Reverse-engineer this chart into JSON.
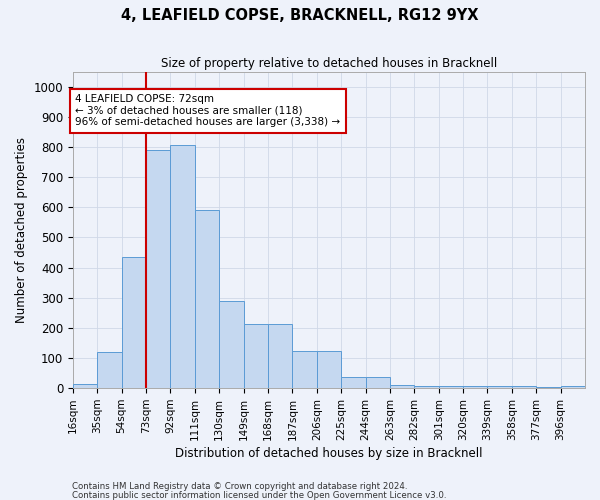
{
  "title": "4, LEAFIELD COPSE, BRACKNELL, RG12 9YX",
  "subtitle": "Size of property relative to detached houses in Bracknell",
  "xlabel": "Distribution of detached houses by size in Bracknell",
  "ylabel": "Number of detached properties",
  "footnote1": "Contains HM Land Registry data © Crown copyright and database right 2024.",
  "footnote2": "Contains public sector information licensed under the Open Government Licence v3.0.",
  "categories": [
    "16sqm",
    "35sqm",
    "54sqm",
    "73sqm",
    "92sqm",
    "111sqm",
    "130sqm",
    "149sqm",
    "168sqm",
    "187sqm",
    "206sqm",
    "225sqm",
    "244sqm",
    "263sqm",
    "282sqm",
    "301sqm",
    "320sqm",
    "339sqm",
    "358sqm",
    "377sqm",
    "396sqm"
  ],
  "values": [
    15,
    120,
    435,
    790,
    808,
    590,
    290,
    212,
    212,
    122,
    122,
    38,
    38,
    12,
    8,
    8,
    8,
    8,
    8,
    5,
    8
  ],
  "bar_color": "#c5d8f0",
  "bar_edge_color": "#5b9bd5",
  "annotation_line1": "4 LEAFIELD COPSE: 72sqm",
  "annotation_line2": "← 3% of detached houses are smaller (118)",
  "annotation_line3": "96% of semi-detached houses are larger (3,338) →",
  "annotation_box_color": "#ffffff",
  "annotation_box_edge_color": "#cc0000",
  "vline_color": "#cc0000",
  "vline_x_index": 3,
  "ylim": [
    0,
    1050
  ],
  "yticks": [
    0,
    100,
    200,
    300,
    400,
    500,
    600,
    700,
    800,
    900,
    1000
  ],
  "grid_color": "#d0d8e8",
  "background_color": "#eef2fa",
  "bin_width": 19
}
